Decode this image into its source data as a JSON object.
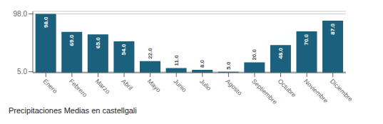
{
  "chart_data": {
    "type": "bar",
    "title": "Precipitaciones Medias en castellgali",
    "categories": [
      "Enero",
      "Febrero",
      "Marzo",
      "Abril",
      "Mayo",
      "Junio",
      "Julio",
      "Agosto",
      "Septiembre",
      "Octubre",
      "Noviembre",
      "Diciembre"
    ],
    "values": [
      98.0,
      69.0,
      65.0,
      54.0,
      22.0,
      11.0,
      8.0,
      5.0,
      20.0,
      48.0,
      70.0,
      87.0
    ],
    "value_labels": [
      "98.0",
      "69.0",
      "65.0",
      "54.0",
      "22.0",
      "11.0",
      "8.0",
      "5.0",
      "20.0",
      "48.0",
      "70.0",
      "87.0"
    ],
    "color": "#1b607c",
    "ylim": [
      3.5,
      102
    ],
    "yticks": [
      {
        "value": 5,
        "label": "5.0"
      },
      {
        "value": 98,
        "label": "98.0"
      }
    ],
    "grid": true,
    "data_labels": true
  }
}
